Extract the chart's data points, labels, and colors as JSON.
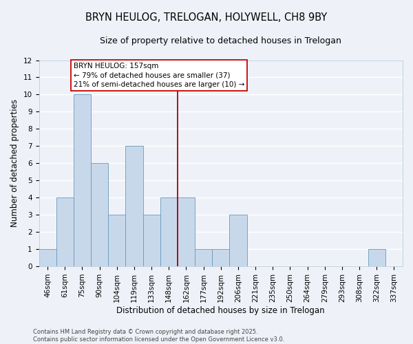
{
  "title": "BRYN HEULOG, TRELOGAN, HOLYWELL, CH8 9BY",
  "subtitle": "Size of property relative to detached houses in Trelogan",
  "xlabel": "Distribution of detached houses by size in Trelogan",
  "ylabel": "Number of detached properties",
  "categories": [
    "46sqm",
    "61sqm",
    "75sqm",
    "90sqm",
    "104sqm",
    "119sqm",
    "133sqm",
    "148sqm",
    "162sqm",
    "177sqm",
    "192sqm",
    "206sqm",
    "221sqm",
    "235sqm",
    "250sqm",
    "264sqm",
    "279sqm",
    "293sqm",
    "308sqm",
    "322sqm",
    "337sqm"
  ],
  "values": [
    1,
    4,
    10,
    6,
    3,
    7,
    3,
    4,
    4,
    1,
    1,
    3,
    0,
    0,
    0,
    0,
    0,
    0,
    0,
    1,
    0
  ],
  "bar_color": "#c8d8eb",
  "bar_edge_color": "#6699bb",
  "marker_bin_index": 7.5,
  "marker_color": "#aa0000",
  "annotation_line1": "BRYN HEULOG: 157sqm",
  "annotation_line2": "← 79% of detached houses are smaller (37)",
  "annotation_line3": "21% of semi-detached houses are larger (10) →",
  "ylim": [
    0,
    12
  ],
  "yticks": [
    0,
    1,
    2,
    3,
    4,
    5,
    6,
    7,
    8,
    9,
    10,
    11,
    12
  ],
  "footer": "Contains HM Land Registry data © Crown copyright and database right 2025.\nContains public sector information licensed under the Open Government Licence v3.0.",
  "background_color": "#eef2f8",
  "grid_color": "#ffffff",
  "title_fontsize": 10.5,
  "subtitle_fontsize": 9,
  "annotation_box_facecolor": "#ffffff",
  "annotation_box_edgecolor": "#cc0000",
  "annotation_fontsize": 7.5,
  "footer_fontsize": 6,
  "xlabel_fontsize": 8.5,
  "ylabel_fontsize": 8.5,
  "tick_fontsize": 7.5
}
